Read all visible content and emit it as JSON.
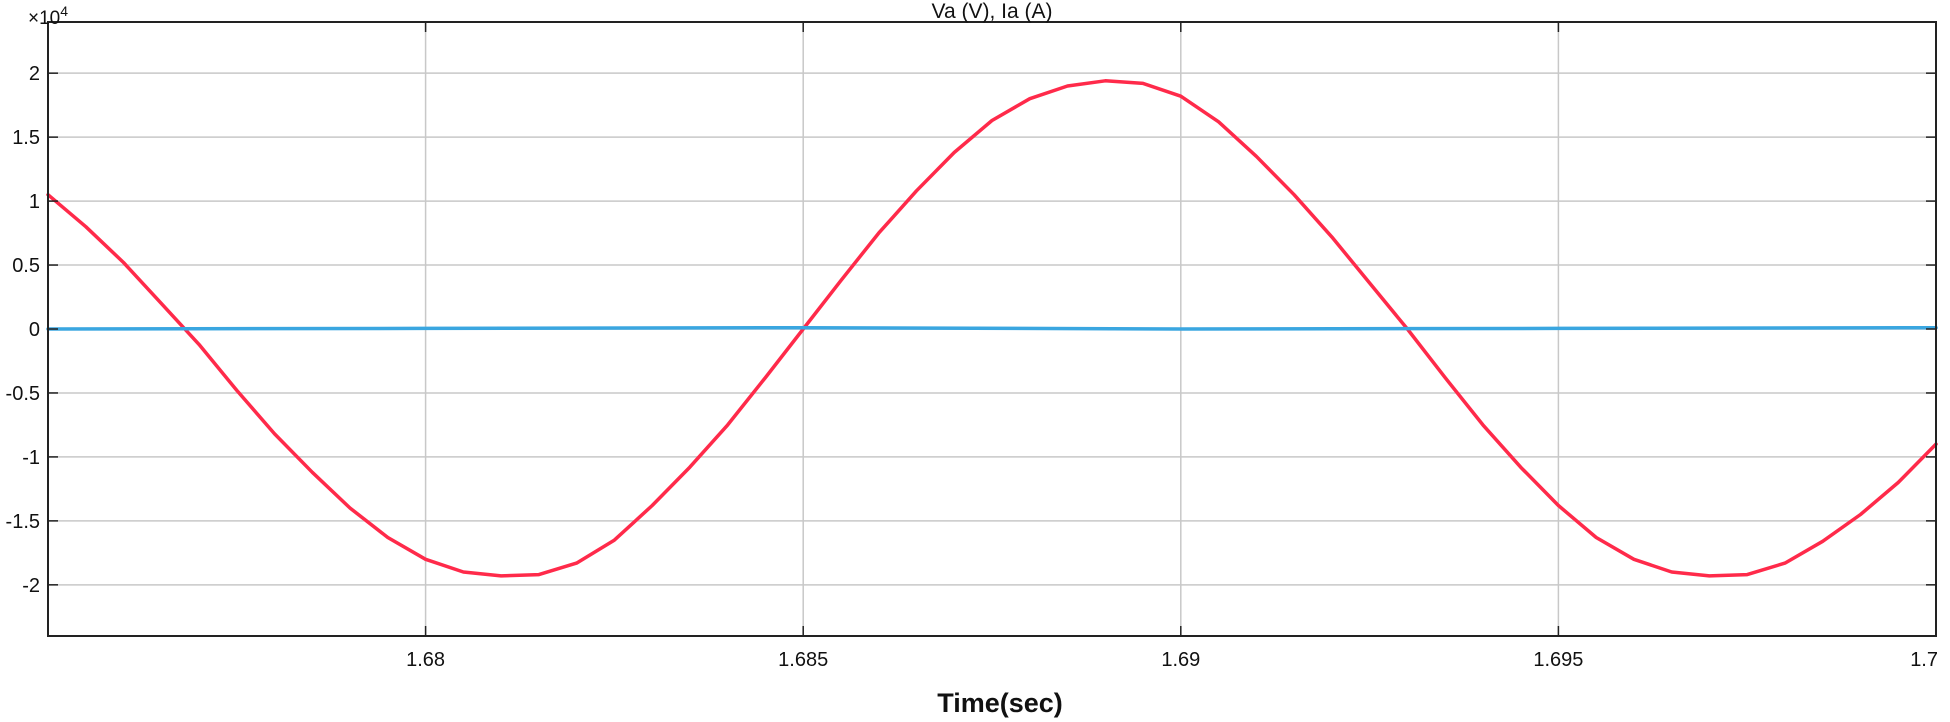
{
  "chart_data": {
    "type": "line",
    "title": "Va (V), Ia (A)",
    "xlabel": "Time(sec)",
    "ylabel": "",
    "y_exponent_base": "×10",
    "y_exponent_power": "4",
    "xlim": [
      1.675,
      1.7
    ],
    "ylim": [
      -2.4,
      2.4
    ],
    "x_ticks": [
      1.68,
      1.685,
      1.69,
      1.695,
      1.7
    ],
    "x_tick_labels": [
      "1.68",
      "1.685",
      "1.69",
      "1.695",
      "1.7"
    ],
    "y_ticks": [
      2,
      1.5,
      1,
      0.5,
      0,
      -0.5,
      -1,
      -1.5,
      -2
    ],
    "y_tick_labels": [
      "2",
      "1.5",
      "1",
      "0.5",
      "0",
      "-0.5",
      "-1",
      "-1.5",
      "-2"
    ],
    "grid": true,
    "series": [
      {
        "color": "#ff2a4a",
        "x": [
          1.675,
          1.6755,
          1.676,
          1.6765,
          1.677,
          1.6775,
          1.678,
          1.6785,
          1.679,
          1.6795,
          1.68,
          1.6805,
          1.681,
          1.6815,
          1.682,
          1.6825,
          1.683,
          1.6835,
          1.684,
          1.6845,
          1.685,
          1.6855,
          1.686,
          1.6865,
          1.687,
          1.6875,
          1.688,
          1.6885,
          1.689,
          1.6895,
          1.69,
          1.6905,
          1.691,
          1.6915,
          1.692,
          1.6925,
          1.693,
          1.6935,
          1.694,
          1.6945,
          1.695,
          1.6955,
          1.696,
          1.6965,
          1.697,
          1.6975,
          1.698,
          1.6985,
          1.699,
          1.6995,
          1.7
        ],
        "y": [
          1.05,
          0.8,
          0.52,
          0.2,
          -0.12,
          -0.48,
          -0.82,
          -1.12,
          -1.4,
          -1.63,
          -1.8,
          -1.9,
          -1.93,
          -1.92,
          -1.83,
          -1.65,
          -1.38,
          -1.08,
          -0.75,
          -0.38,
          0.0,
          0.38,
          0.75,
          1.08,
          1.38,
          1.63,
          1.8,
          1.9,
          1.94,
          1.92,
          1.82,
          1.62,
          1.35,
          1.05,
          0.72,
          0.36,
          0.0,
          -0.38,
          -0.75,
          -1.08,
          -1.38,
          -1.63,
          -1.8,
          -1.9,
          -1.93,
          -1.92,
          -1.83,
          -1.66,
          -1.45,
          -1.2,
          -0.9
        ]
      },
      {
        "color": "#3aa6e0",
        "x": [
          1.675,
          1.68,
          1.685,
          1.69,
          1.695,
          1.7
        ],
        "y": [
          0.0,
          0.005,
          0.01,
          0.0,
          0.005,
          0.01
        ]
      }
    ]
  }
}
